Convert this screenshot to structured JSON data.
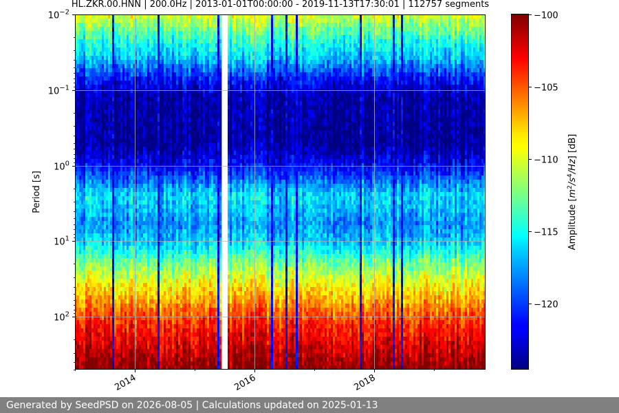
{
  "chart_data": {
    "type": "heatmap",
    "title": "HL.ZKR.00.HNN | 200.0Hz | 2013-01-01T00:00:00 - 2019-11-13T17:30:01 | 112757 segments",
    "xlabel": "",
    "ylabel": "Period [s]",
    "x_range": [
      "2013-01-01",
      "2019-11-13"
    ],
    "x_ticks": [
      {
        "date": "2014-01-01",
        "label": "2014"
      },
      {
        "date": "2016-01-01",
        "label": "2016"
      },
      {
        "date": "2018-01-01",
        "label": "2018"
      }
    ],
    "y_scale": "log",
    "y_range": [
      0.01,
      500
    ],
    "y_inverted": true,
    "y_ticks": [
      {
        "value": 0.01,
        "base": "10",
        "exp": "−2"
      },
      {
        "value": 0.1,
        "base": "10",
        "exp": "−1"
      },
      {
        "value": 1,
        "base": "10",
        "exp": "0"
      },
      {
        "value": 10,
        "base": "10",
        "exp": "1"
      },
      {
        "value": 100,
        "base": "10",
        "exp": "2"
      }
    ],
    "grid": true,
    "data_gaps": [
      [
        "2015-06-20",
        "2015-07-20"
      ]
    ],
    "colorbar": {
      "label_parts": {
        "pre": "Amplitude [",
        "m": "m",
        "m_exp": "2",
        "slash1": "/",
        "s": "s",
        "s_exp": "4",
        "slash2": "/",
        "hz": "Hz",
        "post": "] [dB]"
      },
      "range": [
        -124.5,
        -100
      ],
      "colormap": "jet",
      "ticks": [
        {
          "value": -100,
          "label": "−100"
        },
        {
          "value": -105,
          "label": "−105"
        },
        {
          "value": -110,
          "label": "−110"
        },
        {
          "value": -115,
          "label": "−115"
        },
        {
          "value": -120,
          "label": "−120"
        }
      ]
    },
    "amplitude_profile": [
      {
        "period": 0.01,
        "db": -110
      },
      {
        "period": 0.02,
        "db": -114
      },
      {
        "period": 0.04,
        "db": -117
      },
      {
        "period": 0.07,
        "db": -121
      },
      {
        "period": 0.12,
        "db": -123.5
      },
      {
        "period": 0.5,
        "db": -124
      },
      {
        "period": 1.0,
        "db": -121.5
      },
      {
        "period": 2.5,
        "db": -116
      },
      {
        "period": 6,
        "db": -118
      },
      {
        "period": 10,
        "db": -116.5
      },
      {
        "period": 25,
        "db": -111
      },
      {
        "period": 60,
        "db": -107
      },
      {
        "period": 120,
        "db": -104
      },
      {
        "period": 250,
        "db": -102
      },
      {
        "period": 500,
        "db": -100
      }
    ]
  },
  "footer": {
    "text": "Generated by SeedPSD on 2026-08-05 | Calculations updated on 2025-01-13"
  }
}
